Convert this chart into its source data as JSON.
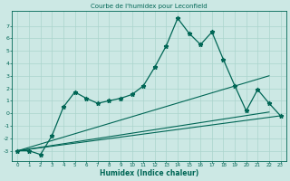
{
  "title": "Courbe de l'humidex pour Leconfield",
  "xlabel": "Humidex (Indice chaleur)",
  "bg_color": "#cce8e4",
  "grid_color": "#aad4cc",
  "line_color": "#006655",
  "xlim": [
    -0.5,
    23.5
  ],
  "ylim": [
    -3.8,
    8.2
  ],
  "xticks": [
    0,
    1,
    2,
    3,
    4,
    5,
    6,
    7,
    8,
    9,
    10,
    11,
    12,
    13,
    14,
    15,
    16,
    17,
    18,
    19,
    20,
    21,
    22,
    23
  ],
  "yticks": [
    -3,
    -2,
    -1,
    0,
    1,
    2,
    3,
    4,
    5,
    6,
    7
  ],
  "main_y": [
    -3.0,
    -3.0,
    -3.3,
    -1.8,
    0.5,
    1.7,
    1.2,
    0.8,
    1.0,
    1.2,
    1.5,
    2.2,
    3.7,
    5.4,
    7.6,
    6.4,
    5.5,
    6.5,
    4.3,
    2.2,
    0.2,
    1.9,
    0.8,
    -0.2
  ],
  "line1_x": [
    0,
    22
  ],
  "line1_y": [
    -3.0,
    3.0
  ],
  "line2_x": [
    0,
    22
  ],
  "line2_y": [
    -3.0,
    0.1
  ],
  "line3_x": [
    0,
    23
  ],
  "line3_y": [
    -3.0,
    -0.2
  ]
}
